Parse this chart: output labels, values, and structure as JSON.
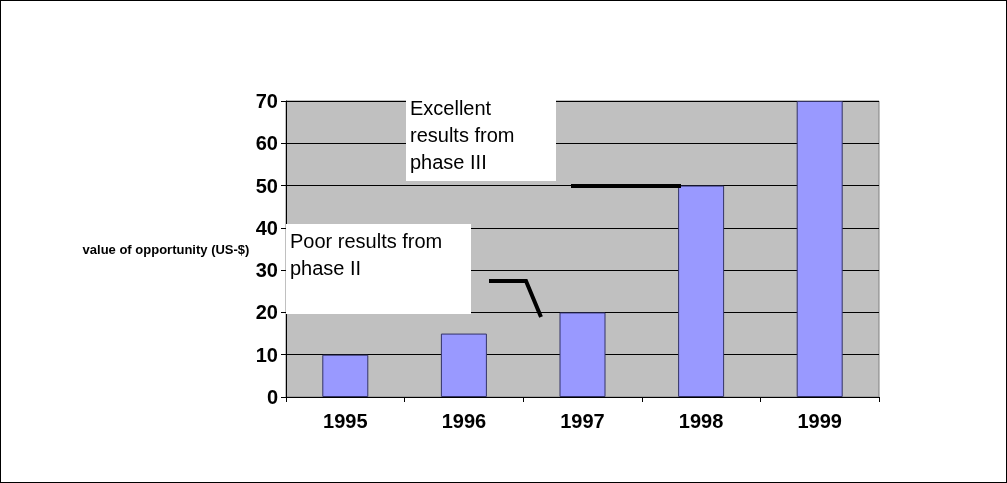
{
  "chart_data": {
    "type": "bar",
    "ylabel": "value of opportunity (US-$)",
    "categories": [
      "1995",
      "1996",
      "1997",
      "1998",
      "1999"
    ],
    "values": [
      10,
      15,
      20,
      50,
      70
    ],
    "color": "#9999ff",
    "ylim": [
      0,
      70
    ],
    "yticks": [
      0,
      10,
      20,
      30,
      40,
      50,
      60,
      70
    ],
    "grid": "y",
    "annotations": [
      "Excellent results from phase III",
      "Poor results from phase II"
    ]
  }
}
